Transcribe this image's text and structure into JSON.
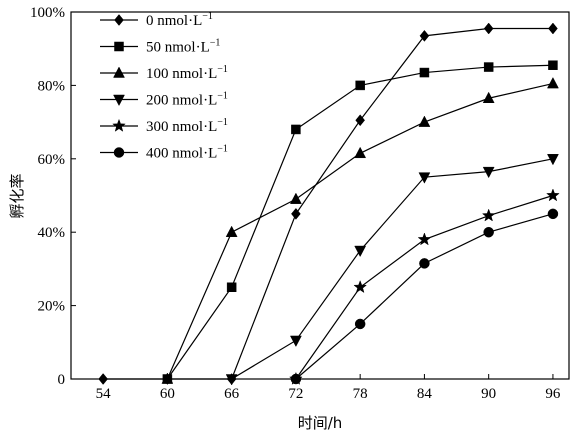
{
  "chart_data": {
    "type": "line",
    "xlabel": "时间/h",
    "ylabel": "孵化率",
    "x": [
      54,
      60,
      66,
      72,
      78,
      84,
      90,
      96
    ],
    "x_tick_labels": [
      "54",
      "60",
      "66",
      "72",
      "78",
      "84",
      "90",
      "96"
    ],
    "ylim": [
      0,
      100
    ],
    "y_tick_labels": [
      "0",
      "20%",
      "40%",
      "60%",
      "80%",
      "100%"
    ],
    "y_ticks": [
      0,
      20,
      40,
      60,
      80,
      100
    ],
    "legend_position": "top-left",
    "series": [
      {
        "name_main": "0 nmol·L",
        "name_sup": "−1",
        "marker": "diamond",
        "points": [
          [
            54,
            0
          ],
          [
            60,
            0
          ],
          [
            66,
            0
          ],
          [
            72,
            45
          ],
          [
            78,
            70.5
          ],
          [
            84,
            93.5
          ],
          [
            90,
            95.5
          ],
          [
            96,
            95.5
          ]
        ]
      },
      {
        "name_main": "50 nmol·L",
        "name_sup": "−1",
        "marker": "square",
        "points": [
          [
            60,
            0
          ],
          [
            66,
            25
          ],
          [
            72,
            68
          ],
          [
            78,
            80
          ],
          [
            84,
            83.5
          ],
          [
            90,
            85
          ],
          [
            96,
            85.5
          ]
        ]
      },
      {
        "name_main": "100 nmol·L",
        "name_sup": "−1",
        "marker": "triangle-up",
        "points": [
          [
            60,
            0
          ],
          [
            66,
            40
          ],
          [
            72,
            49
          ],
          [
            78,
            61.5
          ],
          [
            84,
            70
          ],
          [
            90,
            76.5
          ],
          [
            96,
            80.5
          ]
        ]
      },
      {
        "name_main": "200 nmol·L",
        "name_sup": "−1",
        "marker": "triangle-down",
        "points": [
          [
            66,
            0
          ],
          [
            72,
            10.5
          ],
          [
            78,
            35
          ],
          [
            84,
            55
          ],
          [
            90,
            56.5
          ],
          [
            96,
            60
          ]
        ]
      },
      {
        "name_main": "300 nmol·L",
        "name_sup": "−1",
        "marker": "star",
        "points": [
          [
            72,
            0
          ],
          [
            78,
            25
          ],
          [
            84,
            38
          ],
          [
            90,
            44.5
          ],
          [
            96,
            50
          ]
        ]
      },
      {
        "name_main": "400 nmol·L",
        "name_sup": "−1",
        "marker": "circle",
        "points": [
          [
            72,
            0
          ],
          [
            78,
            15
          ],
          [
            84,
            31.5
          ],
          [
            90,
            40
          ],
          [
            96,
            45
          ]
        ]
      }
    ]
  }
}
